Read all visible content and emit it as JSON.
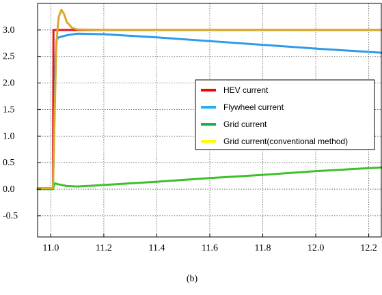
{
  "chart_data": {
    "type": "line",
    "caption": "(b)",
    "xlabel": "",
    "ylabel": "",
    "xlim": [
      10.95,
      12.25
    ],
    "ylim": [
      -0.9,
      3.5
    ],
    "x_ticks": [
      11.0,
      11.2,
      11.4,
      11.6,
      11.8,
      12.0,
      12.2
    ],
    "x_tick_labels": [
      "11.0",
      "11.2",
      "11.4",
      "11.6",
      "11.8",
      "12.0",
      "12.2"
    ],
    "y_ticks": [
      3.0,
      2.5,
      2.0,
      1.5,
      1.0,
      0.5,
      0.0,
      -0.5
    ],
    "y_tick_labels": [
      "3.0",
      "2.5",
      "2.0",
      "1.5",
      "1.0",
      "0.5",
      "0.0",
      "-0.5"
    ],
    "grid": true,
    "legend_position": "center-right",
    "series": [
      {
        "name": "HEV current",
        "color": "#e8141c",
        "points": [
          [
            10.95,
            0.0
          ],
          [
            11.008,
            0.0
          ],
          [
            11.01,
            3.0
          ],
          [
            12.25,
            3.0
          ]
        ]
      },
      {
        "name": "Flywheel current",
        "color": "#2d9be8",
        "points": [
          [
            10.95,
            0.0
          ],
          [
            11.008,
            0.0
          ],
          [
            11.015,
            1.7
          ],
          [
            11.018,
            2.5
          ],
          [
            11.022,
            2.82
          ],
          [
            11.03,
            2.86
          ],
          [
            11.06,
            2.9
          ],
          [
            11.1,
            2.93
          ],
          [
            11.2,
            2.92
          ],
          [
            11.4,
            2.86
          ],
          [
            11.6,
            2.79
          ],
          [
            11.8,
            2.72
          ],
          [
            12.0,
            2.65
          ],
          [
            12.25,
            2.57
          ]
        ]
      },
      {
        "name": "Grid current",
        "color": "#3fbf2c",
        "points": [
          [
            10.95,
            0.0
          ],
          [
            11.008,
            0.0
          ],
          [
            11.015,
            0.11
          ],
          [
            11.03,
            0.09
          ],
          [
            11.06,
            0.06
          ],
          [
            11.1,
            0.05
          ],
          [
            11.2,
            0.08
          ],
          [
            11.4,
            0.14
          ],
          [
            11.6,
            0.21
          ],
          [
            11.8,
            0.27
          ],
          [
            12.0,
            0.34
          ],
          [
            12.25,
            0.41
          ]
        ]
      },
      {
        "name": "Grid current(conventional method)",
        "color": "#d8a92a",
        "points": [
          [
            10.95,
            0.02
          ],
          [
            11.008,
            0.02
          ],
          [
            11.015,
            1.5
          ],
          [
            11.02,
            2.6
          ],
          [
            11.025,
            3.0
          ],
          [
            11.03,
            3.25
          ],
          [
            11.04,
            3.38
          ],
          [
            11.05,
            3.3
          ],
          [
            11.06,
            3.15
          ],
          [
            11.08,
            3.04
          ],
          [
            11.1,
            3.01
          ],
          [
            11.2,
            3.0
          ],
          [
            12.25,
            3.0
          ]
        ]
      }
    ]
  },
  "colors": {
    "legend_color_0": "#ff0000",
    "legend_color_1": "#22b0f0",
    "legend_color_2": "#1ab04a",
    "legend_color_3": "#ffff00"
  }
}
